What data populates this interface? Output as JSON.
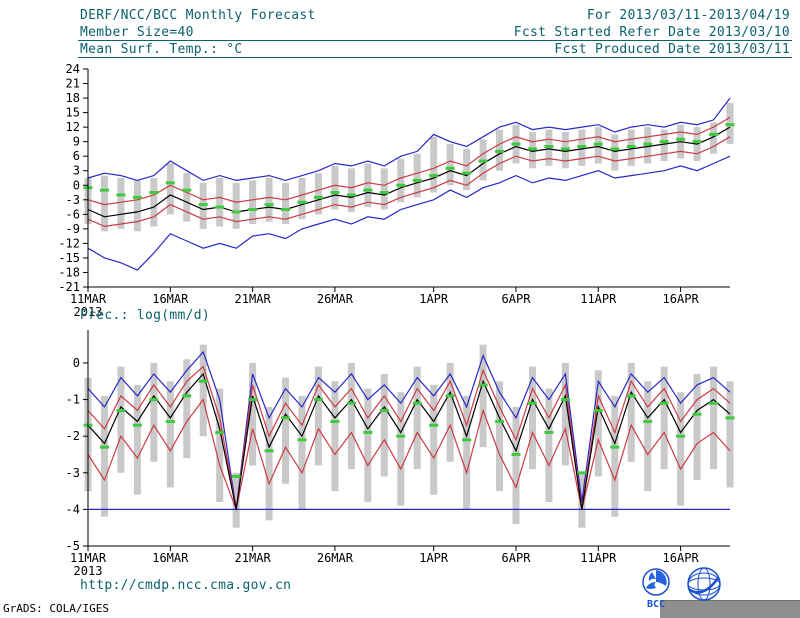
{
  "header": {
    "title": "DERF/NCC/BCC Monthly Forecast",
    "for_range": "For 2013/03/11-2013/04/19",
    "member_size": "Member Size=40",
    "fcst_refer": "Fcst Started Refer Date 2013/03/10",
    "fcst_produced": "Fcst Produced Date 2013/03/11"
  },
  "footer": {
    "url": "http://cmdp.ncc.cma.gov.cn",
    "credit": "GrADS: COLA/IGES",
    "bcc_label": "BCC"
  },
  "colors": {
    "header_text": "#0c616e",
    "axis": "#000000",
    "ensemble_bar": "#c9c9c9",
    "envelope_blue": "#2828c8",
    "quartile_red": "#cc3b44",
    "median_black": "#000000",
    "obs_green": "#3fc93f",
    "logo_blue": "#1a4fd0"
  },
  "chart_data": [
    {
      "type": "line",
      "title": "Mean Surf. Temp.: °C",
      "xlabel": "",
      "ylabel": "",
      "ylim": [
        -21,
        24
      ],
      "yticks": [
        24,
        21,
        18,
        15,
        12,
        9,
        6,
        3,
        0,
        -3,
        -6,
        -9,
        -12,
        -15,
        -18,
        -21
      ],
      "n_days": 40,
      "xticks": [
        0,
        5,
        10,
        15,
        21,
        26,
        31,
        36
      ],
      "xtick_labels": [
        "11MAR",
        "16MAR",
        "21MAR",
        "26MAR",
        "1APR",
        "6APR",
        "11APR",
        "16APR"
      ],
      "year_label": "2013",
      "legend": "none",
      "bars": {
        "color": "#c9c9c9",
        "upper": [
          1.5,
          2.0,
          1.5,
          1.0,
          1.5,
          4.5,
          2.5,
          0.5,
          1.5,
          0.5,
          1.0,
          1.5,
          0.5,
          1.5,
          2.5,
          4.0,
          3.5,
          4.5,
          3.5,
          5.5,
          6.5,
          10.0,
          8.5,
          7.5,
          9.5,
          11.5,
          12.5,
          11.0,
          11.5,
          11.0,
          11.5,
          12.0,
          10.5,
          11.5,
          12.0,
          11.5,
          12.5,
          12.0,
          13.0,
          17.0
        ],
        "lower": [
          -8.0,
          -9.5,
          -9.0,
          -9.5,
          -8.5,
          -6.0,
          -7.5,
          -9.0,
          -8.5,
          -9.0,
          -8.0,
          -7.5,
          -8.0,
          -7.0,
          -6.0,
          -5.0,
          -5.5,
          -4.5,
          -5.0,
          -3.5,
          -2.5,
          -1.5,
          0.0,
          -1.0,
          1.0,
          3.0,
          4.5,
          3.5,
          4.0,
          3.5,
          4.0,
          4.5,
          3.0,
          4.0,
          4.5,
          5.0,
          5.5,
          5.0,
          6.5,
          8.5
        ]
      },
      "series": [
        {
          "name": "ensemble-max",
          "color": "#2828c8",
          "values": [
            1.5,
            2.5,
            2.0,
            1.0,
            2.0,
            5.0,
            3.0,
            1.0,
            2.0,
            1.0,
            1.5,
            2.0,
            1.0,
            2.0,
            3.0,
            4.5,
            4.0,
            5.0,
            4.0,
            6.0,
            7.0,
            10.5,
            9.0,
            8.0,
            10.0,
            12.0,
            13.0,
            11.5,
            12.0,
            11.5,
            12.0,
            12.5,
            11.0,
            12.0,
            12.5,
            12.0,
            13.0,
            12.5,
            13.5,
            18.0
          ]
        },
        {
          "name": "upper-quartile",
          "color": "#cc3b44",
          "values": [
            -3.0,
            -4.0,
            -3.5,
            -3.0,
            -2.0,
            0.0,
            -1.5,
            -3.0,
            -2.5,
            -3.5,
            -3.0,
            -2.5,
            -3.0,
            -2.0,
            -1.0,
            0.0,
            -0.5,
            0.5,
            0.0,
            1.5,
            2.5,
            3.5,
            5.0,
            4.0,
            6.5,
            8.5,
            10.0,
            9.0,
            9.5,
            9.0,
            9.5,
            10.0,
            9.0,
            9.5,
            10.0,
            10.5,
            11.0,
            10.5,
            12.0,
            14.0
          ]
        },
        {
          "name": "lower-quartile",
          "color": "#cc3b44",
          "values": [
            -7.0,
            -8.5,
            -8.0,
            -7.5,
            -6.5,
            -4.0,
            -5.5,
            -7.0,
            -6.5,
            -7.5,
            -7.0,
            -6.5,
            -7.0,
            -6.0,
            -5.0,
            -4.0,
            -4.5,
            -3.5,
            -4.0,
            -2.5,
            -1.5,
            -0.5,
            1.0,
            0.0,
            2.5,
            4.5,
            6.0,
            5.0,
            5.5,
            5.0,
            5.5,
            6.0,
            5.0,
            5.5,
            6.0,
            6.5,
            7.0,
            6.5,
            8.0,
            10.0
          ]
        },
        {
          "name": "ensemble-min",
          "color": "#2828c8",
          "values": [
            -13.0,
            -15.0,
            -16.0,
            -17.5,
            -14.0,
            -10.0,
            -11.5,
            -13.0,
            -12.0,
            -13.0,
            -10.5,
            -10.0,
            -11.0,
            -9.0,
            -8.0,
            -7.0,
            -8.0,
            -6.5,
            -7.0,
            -5.0,
            -4.0,
            -3.0,
            -1.0,
            -2.5,
            -0.5,
            0.5,
            2.0,
            0.5,
            1.5,
            1.0,
            2.0,
            3.0,
            1.5,
            2.0,
            2.5,
            3.0,
            4.0,
            3.0,
            4.5,
            6.0
          ]
        },
        {
          "name": "ensemble-mean",
          "color": "#000000",
          "values": [
            -5.0,
            -6.5,
            -6.0,
            -5.5,
            -4.5,
            -2.0,
            -3.5,
            -5.0,
            -4.5,
            -5.5,
            -5.0,
            -4.5,
            -5.0,
            -4.0,
            -3.0,
            -2.0,
            -2.5,
            -1.5,
            -2.0,
            -0.5,
            0.5,
            1.5,
            3.0,
            2.0,
            4.5,
            6.5,
            8.0,
            7.0,
            7.5,
            7.0,
            7.5,
            8.0,
            7.0,
            7.5,
            8.0,
            8.5,
            9.0,
            8.5,
            10.0,
            12.0
          ]
        }
      ],
      "obs_dashes": {
        "color": "#3fc93f",
        "values": [
          -0.5,
          -1.0,
          -2.0,
          -2.5,
          -1.5,
          0.5,
          -1.0,
          -4.0,
          -4.5,
          -5.5,
          -5.0,
          -4.0,
          -5.0,
          -3.5,
          -2.5,
          -1.5,
          -2.0,
          -1.0,
          -1.5,
          0.0,
          1.0,
          2.0,
          3.5,
          2.5,
          5.0,
          7.0,
          8.5,
          7.5,
          8.0,
          7.5,
          8.0,
          8.5,
          7.5,
          8.0,
          8.5,
          9.0,
          9.5,
          9.0,
          10.5,
          12.5
        ]
      }
    },
    {
      "type": "line",
      "title": "Prec.: log(mm/d)",
      "xlabel": "",
      "ylabel": "",
      "ylim": [
        -5,
        0.9
      ],
      "yticks": [
        0,
        -1,
        -2,
        -3,
        -4,
        -5
      ],
      "n_days": 40,
      "xticks": [
        0,
        5,
        10,
        15,
        21,
        26,
        31,
        36
      ],
      "xtick_labels": [
        "11MAR",
        "16MAR",
        "21MAR",
        "26MAR",
        "1APR",
        "6APR",
        "11APR",
        "16APR"
      ],
      "year_label": "2013",
      "legend": "none",
      "bars": {
        "color": "#c9c9c9",
        "upper": [
          -0.4,
          -0.9,
          -0.1,
          -0.6,
          0.0,
          -0.5,
          0.1,
          0.5,
          -0.7,
          -3.0,
          0.0,
          -1.2,
          -0.4,
          -0.9,
          -0.1,
          -0.5,
          0.0,
          -0.7,
          -0.3,
          -0.8,
          -0.1,
          -0.6,
          0.0,
          -0.9,
          0.5,
          -0.5,
          -1.2,
          -0.1,
          -0.7,
          0.0,
          -3.0,
          -0.2,
          -0.9,
          0.0,
          -0.5,
          -0.1,
          -0.8,
          -0.3,
          -0.1,
          -0.5
        ],
        "lower": [
          -3.5,
          -4.2,
          -3.0,
          -3.6,
          -2.7,
          -3.4,
          -2.6,
          -2.0,
          -3.8,
          -4.5,
          -2.8,
          -4.3,
          -3.3,
          -4.0,
          -2.8,
          -3.5,
          -2.9,
          -3.8,
          -3.1,
          -3.9,
          -2.9,
          -3.6,
          -2.7,
          -4.0,
          -2.3,
          -3.5,
          -4.4,
          -2.9,
          -3.8,
          -2.8,
          -4.5,
          -3.1,
          -4.2,
          -2.7,
          -3.5,
          -2.9,
          -3.9,
          -3.2,
          -2.9,
          -3.4
        ]
      },
      "series": [
        {
          "name": "ensemble-max",
          "color": "#2828c8",
          "values": [
            -0.7,
            -1.2,
            -0.4,
            -0.9,
            -0.3,
            -0.8,
            -0.2,
            0.3,
            -1.0,
            -4.0,
            -0.3,
            -1.5,
            -0.7,
            -1.2,
            -0.4,
            -0.8,
            -0.3,
            -1.0,
            -0.6,
            -1.1,
            -0.4,
            -0.9,
            -0.3,
            -1.2,
            0.2,
            -0.8,
            -1.5,
            -0.4,
            -1.0,
            -0.3,
            -3.8,
            -0.5,
            -1.2,
            -0.3,
            -0.8,
            -0.4,
            -1.1,
            -0.6,
            -0.4,
            -0.8
          ]
        },
        {
          "name": "upper-quartile",
          "color": "#cc3b44",
          "values": [
            -1.3,
            -1.8,
            -0.9,
            -1.3,
            -0.6,
            -1.2,
            -0.5,
            -0.1,
            -1.5,
            -4.0,
            -0.6,
            -2.0,
            -1.1,
            -1.7,
            -0.6,
            -1.2,
            -0.7,
            -1.5,
            -0.9,
            -1.6,
            -0.7,
            -1.3,
            -0.5,
            -1.7,
            -0.2,
            -1.2,
            -2.1,
            -0.7,
            -1.5,
            -0.6,
            -4.0,
            -0.9,
            -1.9,
            -0.5,
            -1.2,
            -0.7,
            -1.6,
            -1.0,
            -0.7,
            -1.1
          ]
        },
        {
          "name": "lower-quartile",
          "color": "#cc3b44",
          "values": [
            -2.5,
            -3.2,
            -2.0,
            -2.6,
            -1.7,
            -2.4,
            -1.6,
            -1.0,
            -2.8,
            -4.0,
            -1.8,
            -3.3,
            -2.3,
            -3.0,
            -1.8,
            -2.5,
            -1.9,
            -2.8,
            -2.1,
            -2.9,
            -1.9,
            -2.6,
            -1.7,
            -3.0,
            -1.3,
            -2.5,
            -3.4,
            -1.9,
            -2.8,
            -1.8,
            -4.0,
            -2.1,
            -3.2,
            -1.7,
            -2.5,
            -1.9,
            -2.9,
            -2.2,
            -1.9,
            -2.4
          ]
        },
        {
          "name": "ensemble-min-floor",
          "color": "#2828c8",
          "const": -4.0
        },
        {
          "name": "ensemble-mean",
          "color": "#000000",
          "values": [
            -1.7,
            -2.2,
            -1.2,
            -1.6,
            -0.9,
            -1.5,
            -0.8,
            -0.3,
            -1.8,
            -4.0,
            -0.9,
            -2.3,
            -1.4,
            -2.0,
            -0.9,
            -1.5,
            -1.0,
            -1.8,
            -1.2,
            -1.9,
            -1.0,
            -1.6,
            -0.8,
            -2.0,
            -0.5,
            -1.5,
            -2.4,
            -1.0,
            -1.8,
            -0.9,
            -4.0,
            -1.2,
            -2.2,
            -0.8,
            -1.5,
            -1.0,
            -1.9,
            -1.3,
            -1.0,
            -1.4
          ]
        }
      ],
      "obs_dashes": {
        "color": "#3fc93f",
        "values": [
          -1.7,
          -2.3,
          -1.3,
          -1.7,
          -1.0,
          -1.6,
          -0.9,
          -0.5,
          -1.9,
          -3.1,
          -1.0,
          -2.4,
          -1.5,
          -2.1,
          -1.0,
          -1.6,
          -1.1,
          -1.9,
          -1.3,
          -2.0,
          -1.1,
          -1.7,
          -0.9,
          -2.1,
          -0.6,
          -1.6,
          -2.5,
          -1.1,
          -1.9,
          -1.0,
          -3.0,
          -1.3,
          -2.3,
          -0.9,
          -1.6,
          -1.1,
          -2.0,
          -1.4,
          -1.1,
          -1.5
        ]
      }
    }
  ]
}
